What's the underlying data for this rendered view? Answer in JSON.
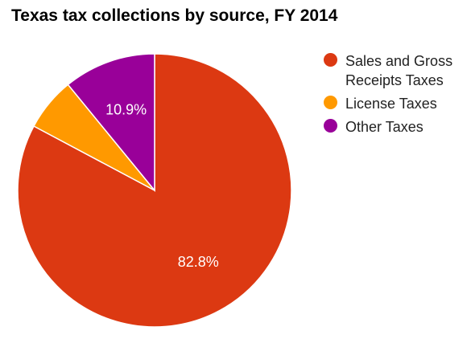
{
  "chart_data": {
    "type": "pie",
    "title": "Texas tax collections by source, FY 2014",
    "slices": [
      {
        "label": "Sales and Gross Receipts Taxes",
        "legend_lines": [
          "Sales and Gross",
          "Receipts Taxes"
        ],
        "value": 82.8,
        "display": "82.8%",
        "color": "#dc3912"
      },
      {
        "label": "License Taxes",
        "legend_lines": [
          "License Taxes"
        ],
        "value": 6.3,
        "display": "",
        "color": "#ff9900"
      },
      {
        "label": "Other Taxes",
        "legend_lines": [
          "Other Taxes"
        ],
        "value": 10.9,
        "display": "10.9%",
        "color": "#990099"
      }
    ],
    "start_angle_deg": 0,
    "direction": "clockwise",
    "legend_position": "right"
  }
}
